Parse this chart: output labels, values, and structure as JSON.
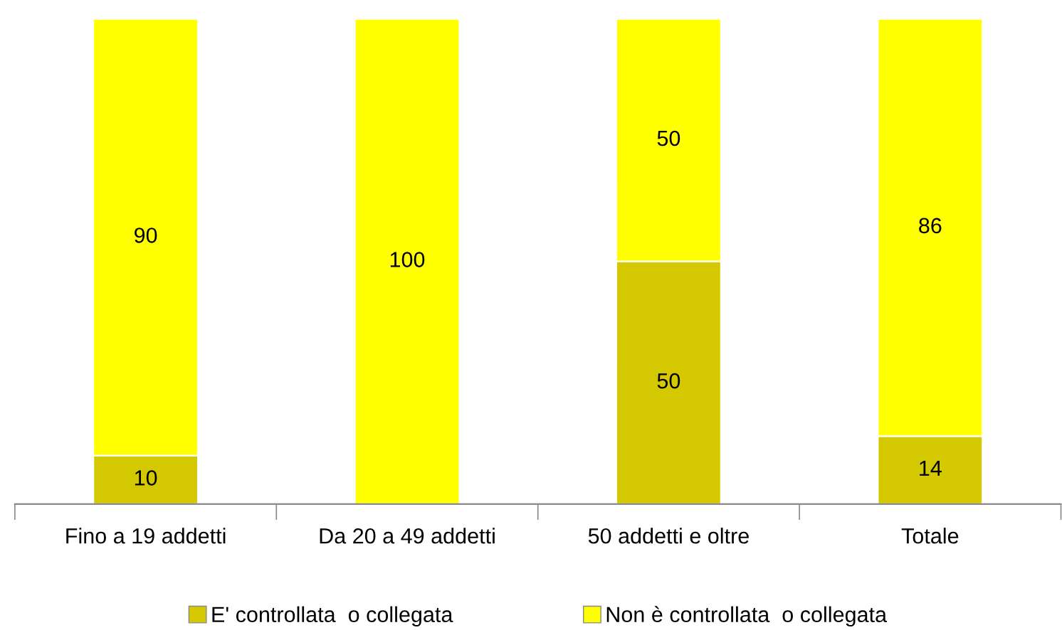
{
  "chart_data": {
    "type": "bar",
    "stacked": true,
    "categories": [
      "Fino a 19 addetti",
      "Da 20 a 49 addetti",
      "50 addetti e oltre",
      "Totale"
    ],
    "series": [
      {
        "name": "E' controllata  o collegata",
        "color": "#d4c800",
        "values": [
          10,
          0,
          50,
          14
        ],
        "value_labels": [
          "10",
          null,
          "50",
          "14"
        ]
      },
      {
        "name": "Non è controllata  o collegata",
        "color": "#ffff00",
        "values": [
          90,
          100,
          50,
          86
        ],
        "value_labels": [
          "90",
          "100",
          "50",
          "86"
        ]
      }
    ],
    "legend": "bottom",
    "grid": false,
    "tick_labels": "x"
  }
}
